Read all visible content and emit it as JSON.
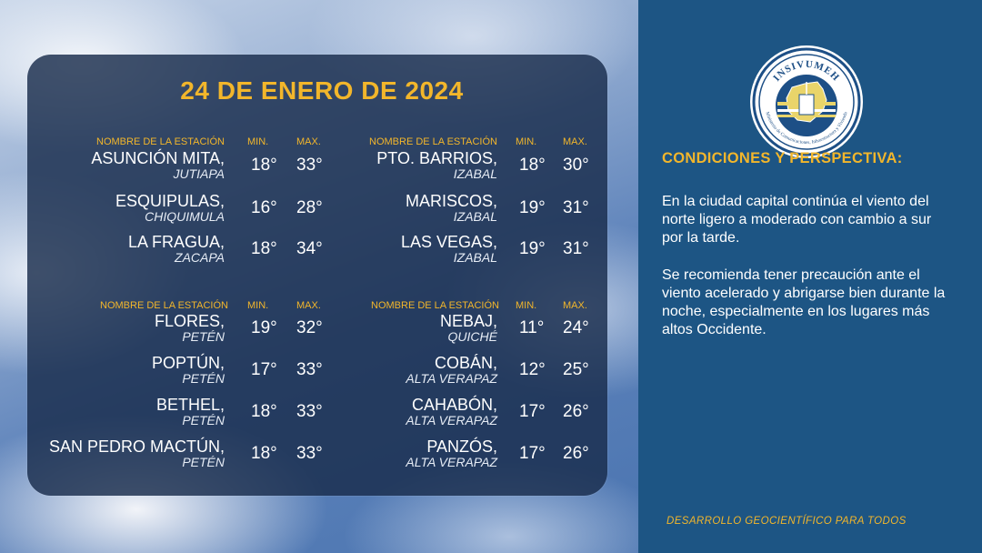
{
  "date_title": "24 DE ENERO DE 2024",
  "headers": {
    "station": "NOMBRE DE LA ESTACIÓN",
    "min": "MIN.",
    "max": "MAX."
  },
  "groups": [
    {
      "stations": [
        {
          "name": "ASUNCIÓN MITA,",
          "dept": "JUTIAPA",
          "min": "18°",
          "max": "33°"
        },
        {
          "name": "ESQUIPULAS,",
          "dept": "CHIQUIMULA",
          "min": "16°",
          "max": "28°"
        },
        {
          "name": "LA FRAGUA,",
          "dept": "ZACAPA",
          "min": "18°",
          "max": "34°"
        }
      ]
    },
    {
      "stations": [
        {
          "name": "PTO. BARRIOS,",
          "dept": "IZABAL",
          "min": "18°",
          "max": "30°"
        },
        {
          "name": "MARISCOS,",
          "dept": "IZABAL",
          "min": "19°",
          "max": "31°"
        },
        {
          "name": "LAS VEGAS,",
          "dept": "IZABAL",
          "min": "19°",
          "max": "31°"
        }
      ]
    },
    {
      "stations": [
        {
          "name": "FLORES,",
          "dept": "PETÉN",
          "min": "19°",
          "max": "32°"
        },
        {
          "name": "POPTÚN,",
          "dept": "PETÉN",
          "min": "17°",
          "max": "33°"
        },
        {
          "name": "BETHEL,",
          "dept": "PETÉN",
          "min": "18°",
          "max": "33°"
        },
        {
          "name": "SAN PEDRO MACTÚN,",
          "dept": "PETÉN",
          "min": "18°",
          "max": "33°"
        }
      ]
    },
    {
      "stations": [
        {
          "name": "NEBAJ,",
          "dept": "QUICHÉ",
          "min": "11°",
          "max": "24°"
        },
        {
          "name": "COBÁN,",
          "dept": "ALTA VERAPAZ",
          "min": "12°",
          "max": "25°"
        },
        {
          "name": "CAHABÓN,",
          "dept": "ALTA VERAPAZ",
          "min": "17°",
          "max": "26°"
        },
        {
          "name": "PANZÓS,",
          "dept": "ALTA VERAPAZ",
          "min": "17°",
          "max": "26°"
        }
      ]
    }
  ],
  "logo": {
    "text": "INSIVUMEH",
    "subtitle": "Ministerio de Comunicaciones, Infraestructura y Vivienda"
  },
  "conditions": {
    "title": "CONDICIONES Y PERSPECTIVA:",
    "paragraph1": "En la ciudad capital continúa el viento del norte ligero a moderado con cambio a sur por la tarde.",
    "paragraph2": "Se recomienda tener precaución ante el viento acelerado y abrigarse bien durante la noche, especialmente en los lugares más altos Occidente."
  },
  "footer": "DESARROLLO GEOCIENTÍFICO PARA TODOS",
  "colors": {
    "accent": "#f2b62b",
    "panel": "#1d5584",
    "card": "#182c4c"
  }
}
